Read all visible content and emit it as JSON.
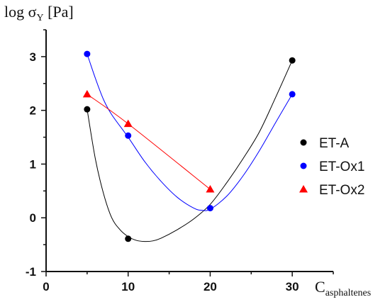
{
  "chart_data": {
    "type": "scatter",
    "title": "",
    "ylabel": {
      "main": "log σ",
      "sub": "Y",
      "unit": "[Pa]"
    },
    "xlabel": {
      "main": "C",
      "sub": "asphaltenes"
    },
    "xlim": [
      0,
      35
    ],
    "ylim": [
      -1,
      3.5
    ],
    "x_ticks": [
      0,
      10,
      20,
      30
    ],
    "y_ticks": [
      -1,
      0,
      1,
      2,
      3
    ],
    "grid": false,
    "legend_position": "right",
    "series": [
      {
        "name": "ET-A",
        "marker": "circle",
        "color": "#000000",
        "points": [
          [
            5,
            2.02
          ],
          [
            10,
            -0.39
          ],
          [
            30,
            2.93
          ]
        ],
        "fit_curve": [
          [
            5,
            2.02
          ],
          [
            6,
            1.1
          ],
          [
            7,
            0.45
          ],
          [
            8,
            0.0
          ],
          [
            9,
            -0.22
          ],
          [
            10,
            -0.35
          ],
          [
            11,
            -0.42
          ],
          [
            12,
            -0.44
          ],
          [
            13,
            -0.43
          ],
          [
            14,
            -0.38
          ],
          [
            16,
            -0.22
          ],
          [
            18,
            -0.02
          ],
          [
            20,
            0.25
          ],
          [
            22,
            0.65
          ],
          [
            24,
            1.1
          ],
          [
            26,
            1.6
          ],
          [
            28,
            2.25
          ],
          [
            30,
            2.93
          ]
        ]
      },
      {
        "name": "ET-Ox1",
        "marker": "circle",
        "color": "#0000ff",
        "points": [
          [
            5,
            3.05
          ],
          [
            10,
            1.53
          ],
          [
            20,
            0.18
          ],
          [
            30,
            2.3
          ]
        ],
        "fit_curve": [
          [
            5,
            3.05
          ],
          [
            6,
            2.6
          ],
          [
            7,
            2.2
          ],
          [
            8,
            1.92
          ],
          [
            10,
            1.5
          ],
          [
            12,
            1.05
          ],
          [
            14,
            0.68
          ],
          [
            16,
            0.38
          ],
          [
            18,
            0.18
          ],
          [
            19,
            0.14
          ],
          [
            20,
            0.16
          ],
          [
            22,
            0.4
          ],
          [
            24,
            0.78
          ],
          [
            26,
            1.25
          ],
          [
            28,
            1.78
          ],
          [
            30,
            2.3
          ]
        ]
      },
      {
        "name": "ET-Ox2",
        "marker": "triangle",
        "color": "#ff0000",
        "points": [
          [
            5,
            2.3
          ],
          [
            10,
            1.75
          ],
          [
            20,
            0.53
          ]
        ],
        "fit_curve": [
          [
            5,
            2.3
          ],
          [
            10,
            1.75
          ],
          [
            20,
            0.53
          ]
        ]
      }
    ]
  }
}
